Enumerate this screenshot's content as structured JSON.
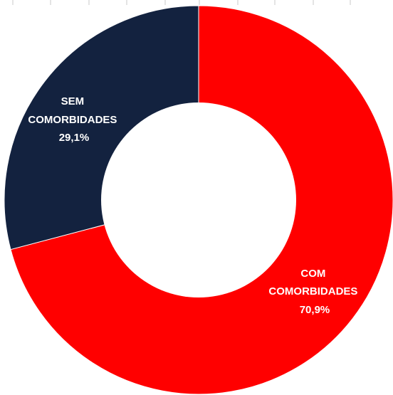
{
  "chart_data": {
    "type": "pie",
    "style": "donut",
    "title": "",
    "slices": [
      {
        "label_lines": [
          "COM",
          "COMORBIDADES"
        ],
        "value": 70.9,
        "value_text": "70,9%",
        "color": "#FF0000"
      },
      {
        "label_lines": [
          "SEM",
          "COMORBIDADES"
        ],
        "value": 29.1,
        "value_text": "29,1%",
        "color": "#13223F"
      }
    ],
    "start": "12 o'clock",
    "direction": "clockwise",
    "legend": "none"
  }
}
